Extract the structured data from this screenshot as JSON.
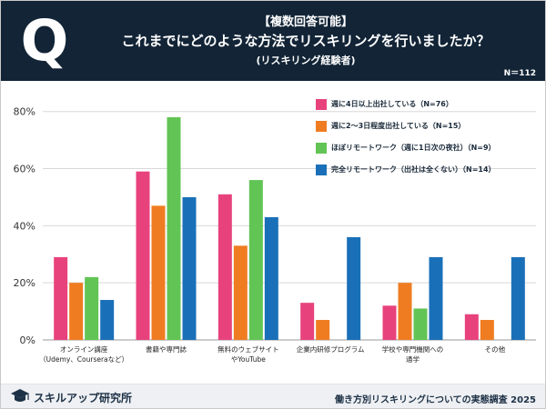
{
  "header": {
    "tag": "【複数回答可能】",
    "question": "これまでにどのような方法でリスキリングを行いましたか？",
    "sub": "(リスキリング経験者)",
    "n": "N＝112",
    "q_letter": "Q"
  },
  "footer": {
    "logo_text": "スキルアップ研究所",
    "note": "働き方別リスキリングについての実態調査 2025"
  },
  "chart_data": {
    "type": "bar",
    "categories": [
      [
        "オンライン講座",
        "（Udemy、Courseraなど）"
      ],
      [
        "書籍や専門誌"
      ],
      [
        "無料のウェブサイト",
        "やYouTube"
      ],
      [
        "企業内研修プログラム"
      ],
      [
        "学校や専門機関への",
        "通学"
      ],
      [
        "その他"
      ]
    ],
    "series": [
      {
        "name": "週に4日以上出社している（N=76）",
        "color": "#e8427c",
        "values": [
          29,
          59,
          51,
          13,
          12,
          9
        ]
      },
      {
        "name": "週に2～3日程度出社している（N=15）",
        "color": "#f07c22",
        "values": [
          20,
          47,
          33,
          7,
          20,
          7
        ]
      },
      {
        "name": "ほぼリモートワーク（週に1日次の夜社）（N=9）",
        "color": "#62c454",
        "values": [
          22,
          78,
          56,
          0,
          11,
          0
        ]
      },
      {
        "name": "完全リモートワーク（出社は全くない）（N=14）",
        "color": "#1a70b8",
        "values": [
          14,
          50,
          43,
          36,
          29,
          29
        ]
      }
    ],
    "yticks": [
      "0%",
      "20%",
      "40%",
      "60%",
      "80%"
    ],
    "ylim": [
      0,
      85
    ],
    "grid": true,
    "legend_position": "top-right"
  }
}
